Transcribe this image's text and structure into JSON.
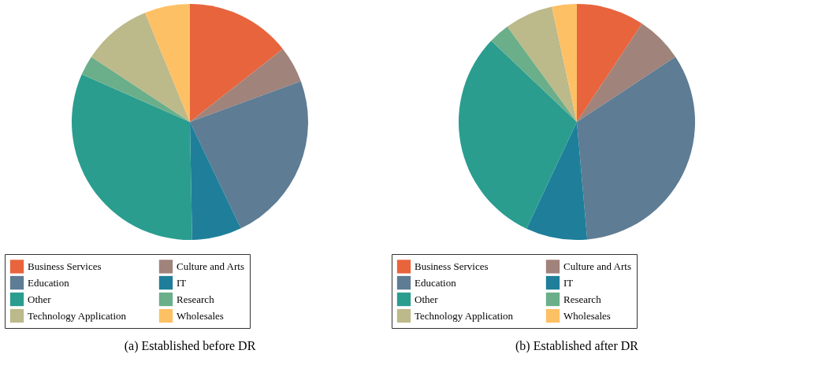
{
  "chart_data": [
    {
      "type": "pie",
      "title": "(a)  Established before DR",
      "categories": [
        "Business Services",
        "Culture and Arts",
        "Education",
        "IT",
        "Other",
        "Research",
        "Technology Application",
        "Wholesales"
      ],
      "values": [
        14.4,
        5.0,
        23.5,
        6.8,
        31.9,
        2.7,
        9.5,
        6.2
      ],
      "colors": [
        "#e8643c",
        "#a0837b",
        "#5e7c94",
        "#1f7f9a",
        "#2a9d8f",
        "#6aaf8a",
        "#bcb98a",
        "#fec064"
      ],
      "legend": "bottom"
    },
    {
      "type": "pie",
      "title": "(b)  Established after DR",
      "categories": [
        "Business Services",
        "Culture and Arts",
        "Education",
        "IT",
        "Other",
        "Research",
        "Technology Application",
        "Wholesales"
      ],
      "values": [
        9.3,
        6.4,
        32.9,
        8.4,
        30.1,
        2.9,
        6.6,
        3.4
      ],
      "colors": [
        "#e8643c",
        "#a0837b",
        "#5e7c94",
        "#1f7f9a",
        "#2a9d8f",
        "#6aaf8a",
        "#bcb98a",
        "#fec064"
      ],
      "legend": "bottom"
    }
  ]
}
